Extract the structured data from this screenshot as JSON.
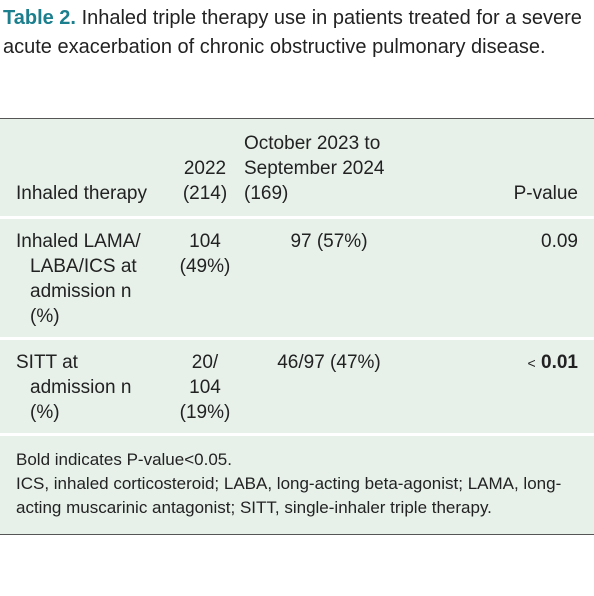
{
  "header": {
    "label": "Table 2.",
    "title": "Inhaled triple therapy use in patients treated for a severe acute exacerbation of chronic obstructive pulmonary disease."
  },
  "table": {
    "columns": [
      "Inhaled therapy",
      "2022 (214)",
      "October 2023 to September 2024 (169)",
      "P-value"
    ],
    "rows": [
      {
        "therapy": "Inhaled LAMA/ LABA/ICS at admission n (%)",
        "y2022": "104 (49%)",
        "y2024": "97 (57%)",
        "p_value": "0.09"
      },
      {
        "therapy": "SITT at admission n (%)",
        "y2022": "20/ 104 (19%)",
        "y2024": "46/97 (47%)",
        "p_prefix": "<",
        "p_value": "0.01"
      }
    ]
  },
  "footnotes": [
    "Bold indicates P-value<0.05.",
    "ICS, inhaled corticosteroid; LABA, long-acting beta-agonist; LAMA, long-acting muscarinic antagonist; SITT, single-inhaler triple therapy."
  ]
}
